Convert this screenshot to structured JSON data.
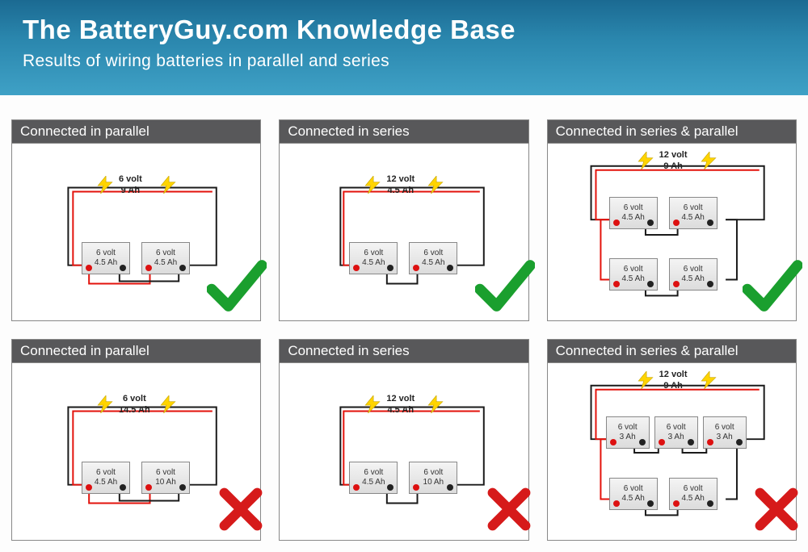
{
  "header": {
    "title": "The BatteryGuy.com Knowledge Base",
    "subtitle": "Results of wiring batteries in parallel and series"
  },
  "colors": {
    "header_gradient": [
      "#1b6a92",
      "#2a86ad",
      "#3fa1c6"
    ],
    "panel_border": "#888888",
    "panel_title_bg": "#58585a",
    "wire_pos": "#e3120b",
    "wire_neg": "#1a1a1a",
    "battery_fill": "#e8e8e8",
    "lightning": "#ffd400",
    "check": "#1a9f2e",
    "cross": "#d61a1a"
  },
  "panels": [
    {
      "title": "Connected in parallel",
      "status": "ok",
      "output": {
        "volt": "6 volt",
        "ah": "9 Ah"
      },
      "batteries": [
        {
          "v": "6 volt",
          "a": "4.5 Ah"
        },
        {
          "v": "6 volt",
          "a": "4.5 Ah"
        }
      ],
      "wiring": "parallel",
      "rows": 1
    },
    {
      "title": "Connected in series",
      "status": "ok",
      "output": {
        "volt": "12 volt",
        "ah": "4.5 Ah"
      },
      "batteries": [
        {
          "v": "6 volt",
          "a": "4.5 Ah"
        },
        {
          "v": "6 volt",
          "a": "4.5 Ah"
        }
      ],
      "wiring": "series",
      "rows": 1
    },
    {
      "title": "Connected in series & parallel",
      "status": "ok",
      "output": {
        "volt": "12 volt",
        "ah": "9 Ah"
      },
      "batteries": [
        {
          "v": "6 volt",
          "a": "4.5 Ah"
        },
        {
          "v": "6 volt",
          "a": "4.5 Ah"
        },
        {
          "v": "6 volt",
          "a": "4.5 Ah"
        },
        {
          "v": "6 volt",
          "a": "4.5 Ah"
        }
      ],
      "wiring": "series-parallel",
      "rows": 2
    },
    {
      "title": "Connected in parallel",
      "status": "bad",
      "output": {
        "volt": "6 volt",
        "ah": "14.5 Ah"
      },
      "batteries": [
        {
          "v": "6 volt",
          "a": "4.5 Ah"
        },
        {
          "v": "6 volt",
          "a": "10 Ah"
        }
      ],
      "wiring": "parallel",
      "rows": 1
    },
    {
      "title": "Connected in series",
      "status": "bad",
      "output": {
        "volt": "12 volt",
        "ah": "4.5 Ah"
      },
      "batteries": [
        {
          "v": "6 volt",
          "a": "4.5 Ah"
        },
        {
          "v": "6 volt",
          "a": "10 Ah"
        }
      ],
      "wiring": "series",
      "rows": 1
    },
    {
      "title": "Connected in series & parallel",
      "status": "bad",
      "output": {
        "volt": "12 volt",
        "ah": "9 Ah"
      },
      "batteries": [
        {
          "v": "6 volt",
          "a": "3 Ah"
        },
        {
          "v": "6 volt",
          "a": "3 Ah"
        },
        {
          "v": "6 volt",
          "a": "3 Ah"
        },
        {
          "v": "6 volt",
          "a": "4.5 Ah"
        },
        {
          "v": "6 volt",
          "a": "4.5 Ah"
        }
      ],
      "wiring": "series-parallel",
      "rows": 2,
      "topCount": 3
    }
  ]
}
